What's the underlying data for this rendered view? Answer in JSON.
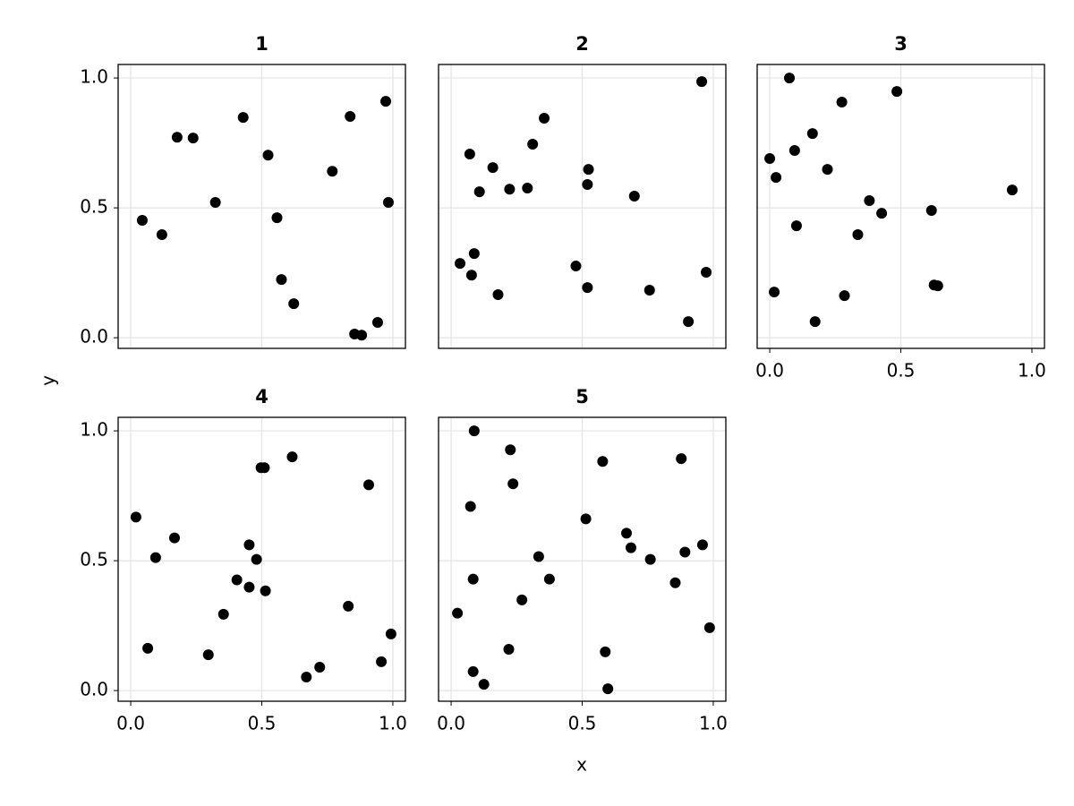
{
  "chart_data": [
    {
      "type": "scatter",
      "title": "1",
      "color": "#000000",
      "grid": true,
      "x": [
        0.044,
        0.119,
        0.177,
        0.238,
        0.323,
        0.429,
        0.524,
        0.558,
        0.575,
        0.622,
        0.769,
        0.837,
        0.854,
        0.881,
        0.942,
        0.973,
        0.983
      ],
      "y": [
        0.452,
        0.397,
        0.772,
        0.769,
        0.521,
        0.848,
        0.703,
        0.462,
        0.224,
        0.131,
        0.641,
        0.852,
        0.014,
        0.01,
        0.059,
        0.91,
        0.521
      ],
      "xlim": [
        -0.048,
        1.048
      ],
      "ylim": [
        -0.041,
        1.052
      ],
      "xticks": [
        0,
        0.5,
        1
      ],
      "yticks": [
        {
          "value": 0,
          "label": "0.0"
        },
        {
          "value": 0.5,
          "label": "0.5"
        },
        {
          "value": 1,
          "label": "1.0"
        }
      ]
    },
    {
      "type": "scatter",
      "title": "2",
      "color": "#000000",
      "grid": true,
      "x": [
        0.034,
        0.071,
        0.088,
        0.078,
        0.108,
        0.159,
        0.179,
        0.223,
        0.291,
        0.311,
        0.355,
        0.476,
        0.52,
        0.524,
        0.52,
        0.699,
        0.757,
        0.905,
        0.956,
        0.973
      ],
      "y": [
        0.286,
        0.707,
        0.324,
        0.241,
        0.562,
        0.655,
        0.166,
        0.572,
        0.576,
        0.745,
        0.845,
        0.276,
        0.193,
        0.648,
        0.59,
        0.545,
        0.183,
        0.062,
        0.986,
        0.252
      ],
      "xlim": [
        -0.048,
        1.048
      ],
      "ylim": [
        -0.041,
        1.052
      ],
      "xticks": [
        0,
        0.5,
        1
      ],
      "yticks": [
        0,
        0.5,
        1
      ]
    },
    {
      "type": "scatter",
      "title": "3",
      "color": "#000000",
      "grid": true,
      "x": [
        0.0,
        0.024,
        0.017,
        0.075,
        0.095,
        0.102,
        0.163,
        0.173,
        0.22,
        0.275,
        0.285,
        0.336,
        0.38,
        0.427,
        0.485,
        0.617,
        0.627,
        0.641,
        0.925
      ],
      "y": [
        0.69,
        0.617,
        0.176,
        1.0,
        0.721,
        0.431,
        0.786,
        0.062,
        0.648,
        0.907,
        0.162,
        0.397,
        0.528,
        0.479,
        0.948,
        0.49,
        0.203,
        0.2,
        0.569
      ],
      "xlim": [
        -0.048,
        1.048
      ],
      "ylim": [
        -0.041,
        1.052
      ],
      "xticks": [
        {
          "value": 0,
          "label": "0.0"
        },
        {
          "value": 0.5,
          "label": "0.5"
        },
        {
          "value": 1,
          "label": "1.0"
        }
      ],
      "yticks": [
        0,
        0.5,
        1
      ]
    },
    {
      "type": "scatter",
      "title": "4",
      "color": "#000000",
      "grid": true,
      "x": [
        0.02,
        0.065,
        0.095,
        0.167,
        0.296,
        0.354,
        0.405,
        0.452,
        0.452,
        0.48,
        0.497,
        0.51,
        0.514,
        0.616,
        0.67,
        0.721,
        0.83,
        0.908,
        0.956,
        0.993
      ],
      "y": [
        0.668,
        0.163,
        0.512,
        0.588,
        0.138,
        0.294,
        0.426,
        0.561,
        0.398,
        0.505,
        0.858,
        0.858,
        0.384,
        0.9,
        0.052,
        0.09,
        0.325,
        0.792,
        0.111,
        0.218
      ],
      "xlim": [
        -0.048,
        1.048
      ],
      "ylim": [
        -0.041,
        1.052
      ],
      "xticks": [
        {
          "value": 0,
          "label": "0.0"
        },
        {
          "value": 0.5,
          "label": "0.5"
        },
        {
          "value": 1,
          "label": "1.0"
        }
      ],
      "yticks": [
        {
          "value": 0,
          "label": "0.0"
        },
        {
          "value": 0.5,
          "label": "0.5"
        },
        {
          "value": 1,
          "label": "1.0"
        }
      ]
    },
    {
      "type": "scatter",
      "title": "5",
      "color": "#000000",
      "grid": true,
      "x": [
        0.024,
        0.074,
        0.084,
        0.088,
        0.084,
        0.125,
        0.226,
        0.236,
        0.22,
        0.27,
        0.334,
        0.375,
        0.514,
        0.578,
        0.588,
        0.598,
        0.669,
        0.686,
        0.76,
        0.855,
        0.878,
        0.892,
        0.959,
        0.986
      ],
      "y": [
        0.298,
        0.709,
        0.429,
        1.0,
        0.073,
        0.024,
        0.927,
        0.796,
        0.159,
        0.349,
        0.516,
        0.429,
        0.661,
        0.882,
        0.149,
        0.007,
        0.606,
        0.55,
        0.505,
        0.415,
        0.893,
        0.533,
        0.561,
        0.242
      ],
      "xlim": [
        -0.048,
        1.048
      ],
      "ylim": [
        -0.041,
        1.052
      ],
      "xticks": [
        {
          "value": 0,
          "label": "0.0"
        },
        {
          "value": 0.5,
          "label": "0.5"
        },
        {
          "value": 1,
          "label": "1.0"
        }
      ],
      "yticks": [
        0,
        0.5,
        1
      ]
    }
  ],
  "xlabel": "x",
  "ylabel": "y"
}
